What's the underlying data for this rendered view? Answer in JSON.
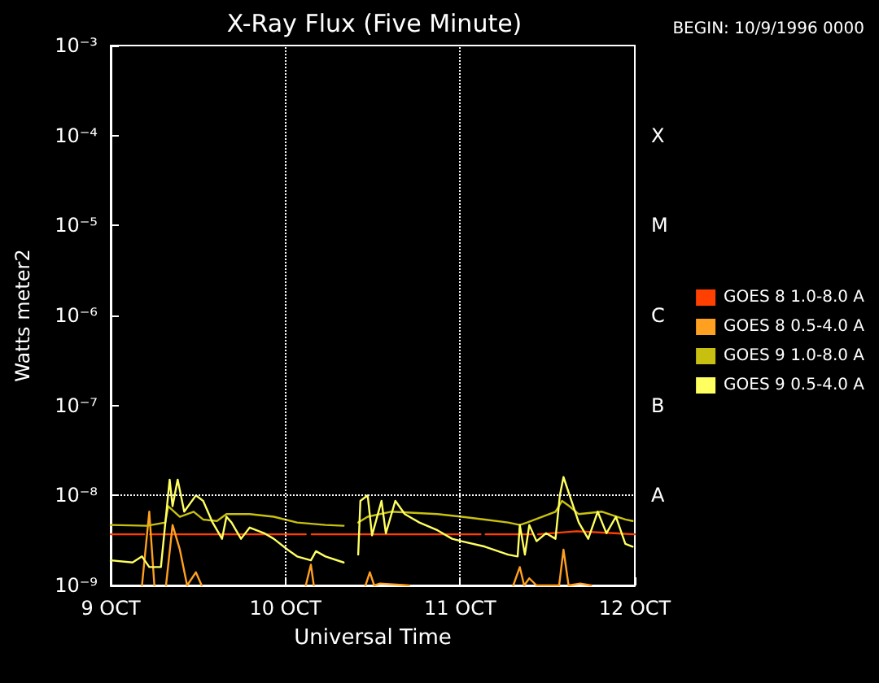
{
  "chart_data": {
    "type": "line",
    "title": "X-Ray Flux (Five Minute)",
    "subtitle": "BEGIN: 10/9/1996 0000",
    "xlabel": "Universal Time",
    "ylabel": "Watts meter2",
    "xlim": [
      "1996-10-09",
      "1996-10-12"
    ],
    "xticks": [
      {
        "value": "1996-10-09",
        "label": "9 OCT"
      },
      {
        "value": "1996-10-10",
        "label": "10 OCT"
      },
      {
        "value": "1996-10-11",
        "label": "11 OCT"
      },
      {
        "value": "1996-10-12",
        "label": "12 OCT"
      }
    ],
    "ylim": [
      1e-09,
      0.001
    ],
    "yticks": [
      {
        "value": 1e-09,
        "label": "10⁻⁹"
      },
      {
        "value": 1e-08,
        "label": "10⁻⁸"
      },
      {
        "value": 1e-07,
        "label": "10⁻⁷"
      },
      {
        "value": 1e-06,
        "label": "10⁻⁶"
      },
      {
        "value": 1e-05,
        "label": "10⁻⁵"
      },
      {
        "value": 0.0001,
        "label": "10⁻⁴"
      },
      {
        "value": 0.001,
        "label": "10⁻³"
      }
    ],
    "annotations": [
      "A",
      "B",
      "C",
      "M",
      "X"
    ],
    "log": "y",
    "grid": false,
    "legend": "right",
    "marker": "none",
    "line_style": "solid",
    "ref_lines": [
      {
        "axis": "x",
        "value": "1996-10-10",
        "line_style": "dotted",
        "color": "#ffffff"
      },
      {
        "axis": "x",
        "value": "1996-10-11",
        "line_style": "dotted",
        "color": "#ffffff"
      },
      {
        "axis": "y",
        "value": 1e-08,
        "line_style": "dotted",
        "color": "#ffffff"
      }
    ],
    "series": [
      {
        "name": "GOES 8 1.0-8.0 A",
        "color": "#ff4000",
        "x": [
          "1996-10-09T00:00",
          "1996-10-09T04:36",
          "1996-10-09T05:00",
          "1996-10-09T05:24",
          "1996-10-10T02:48",
          "1996-10-10T03:12",
          "1996-10-10T03:36",
          "1996-10-11T02:48",
          "1996-10-11T03:06",
          "1996-10-11T03:30",
          "1996-10-11T10:00",
          "1996-10-11T10:18",
          "1996-10-11T10:42",
          "1996-10-11T16:00",
          "1996-10-12T00:00"
        ],
        "values": [
          3.7e-09,
          3.7e-09,
          null,
          3.7e-09,
          3.7e-09,
          null,
          3.7e-09,
          3.7e-09,
          null,
          3.7e-09,
          3.7e-09,
          null,
          3.7e-09,
          4e-09,
          3.7e-09
        ]
      },
      {
        "name": "GOES 8 0.5-4.0 A",
        "color": "#ffa020",
        "x": [
          "1996-10-09T04:18",
          "1996-10-09T05:18",
          "1996-10-09T06:00",
          "1996-10-09T06:30",
          "1996-10-09T07:36",
          "1996-10-09T08:30",
          "1996-10-09T09:30",
          "1996-10-09T10:30",
          "1996-10-09T11:42",
          "1996-10-09T12:30",
          "1996-10-09T13:00",
          "1996-10-10T02:48",
          "1996-10-10T03:30",
          "1996-10-10T03:54",
          "1996-10-10T04:12",
          "1996-10-10T11:00",
          "1996-10-10T11:36",
          "1996-10-10T12:12",
          "1996-10-10T13:00",
          "1996-10-10T17:00",
          "1996-10-10T17:30",
          "1996-10-11T07:18",
          "1996-10-11T08:12",
          "1996-10-11T08:48",
          "1996-10-11T09:30",
          "1996-10-11T10:30",
          "1996-10-11T13:36",
          "1996-10-11T14:12",
          "1996-10-11T14:54",
          "1996-10-11T16:30",
          "1996-10-11T18:00"
        ],
        "values": [
          1e-09,
          6.6e-09,
          1e-09,
          null,
          1e-09,
          4.7e-09,
          2.5e-09,
          1e-09,
          1.4e-09,
          1e-09,
          null,
          1e-09,
          1.7e-09,
          1e-09,
          null,
          1e-09,
          1.4e-09,
          1e-09,
          1.05e-09,
          1e-09,
          null,
          1e-09,
          1.6e-09,
          1e-09,
          1.2e-09,
          1e-09,
          1e-09,
          2.5e-09,
          1e-09,
          1.05e-09,
          1e-09
        ]
      },
      {
        "name": "GOES 9 1.0-8.0 A",
        "color": "#c8c010",
        "x": [
          "1996-10-09T00:00",
          "1996-10-09T05:00",
          "1996-10-09T07:30",
          "1996-10-09T07:54",
          "1996-10-09T09:30",
          "1996-10-09T11:24",
          "1996-10-09T12:42",
          "1996-10-09T14:36",
          "1996-10-09T15:54",
          "1996-10-09T19:06",
          "1996-10-09T22:24",
          "1996-10-10T01:36",
          "1996-10-10T05:30",
          "1996-10-10T08:00",
          "1996-10-10T09:00",
          "1996-10-10T10:00",
          "1996-10-10T11:18",
          "1996-10-10T14:30",
          "1996-10-10T17:42",
          "1996-10-10T20:54",
          "1996-10-11T00:12",
          "1996-10-11T03:24",
          "1996-10-11T06:36",
          "1996-10-11T08:12",
          "1996-10-11T09:12",
          "1996-10-11T13:06",
          "1996-10-11T14:00",
          "1996-10-11T15:00",
          "1996-10-11T16:18",
          "1996-10-11T19:30",
          "1996-10-11T22:42",
          "1996-10-11T23:42"
        ],
        "values": [
          4.7e-09,
          4.6e-09,
          5e-09,
          7.6e-09,
          5.8e-09,
          6.6e-09,
          5.4e-09,
          5.2e-09,
          6.2e-09,
          6.2e-09,
          5.8e-09,
          5e-09,
          4.7e-09,
          4.6e-09,
          null,
          5e-09,
          5.8e-09,
          6.6e-09,
          6.4e-09,
          6.2e-09,
          5.8e-09,
          5.4e-09,
          5e-09,
          4.7e-09,
          5e-09,
          6.6e-09,
          8.7e-09,
          7.6e-09,
          6.2e-09,
          6.6e-09,
          5.4e-09,
          5.2e-09
        ]
      },
      {
        "name": "GOES 9 0.5-4.0 A",
        "color": "#ffff60",
        "x": [
          "1996-10-09T00:00",
          "1996-10-09T03:00",
          "1996-10-09T04:18",
          "1996-10-09T05:18",
          "1996-10-09T06:54",
          "1996-10-09T08:06",
          "1996-10-09T08:30",
          "1996-10-09T09:12",
          "1996-10-09T10:06",
          "1996-10-09T11:42",
          "1996-10-09T12:42",
          "1996-10-09T14:00",
          "1996-10-09T15:18",
          "1996-10-09T15:54",
          "1996-10-09T16:36",
          "1996-10-09T17:54",
          "1996-10-09T19:06",
          "1996-10-09T21:06",
          "1996-10-09T22:24",
          "1996-10-10T00:18",
          "1996-10-10T01:36",
          "1996-10-10T03:30",
          "1996-10-10T04:12",
          "1996-10-10T05:30",
          "1996-10-10T08:00",
          "1996-10-10T09:00",
          "1996-10-10T10:00",
          "1996-10-10T10:18",
          "1996-10-10T11:18",
          "1996-10-10T11:54",
          "1996-10-10T13:12",
          "1996-10-10T13:48",
          "1996-10-10T15:06",
          "1996-10-10T16:24",
          "1996-10-10T18:24",
          "1996-10-10T20:54",
          "1996-10-10T22:54",
          "1996-10-11T00:12",
          "1996-10-11T03:24",
          "1996-10-11T06:36",
          "1996-10-11T07:54",
          "1996-10-11T08:12",
          "1996-10-11T08:54",
          "1996-10-11T09:30",
          "1996-10-11T10:30",
          "1996-10-11T11:48",
          "1996-10-11T13:06",
          "1996-10-11T13:42",
          "1996-10-11T14:12",
          "1996-10-11T15:18",
          "1996-10-11T16:18",
          "1996-10-11T17:36",
          "1996-10-11T18:54",
          "1996-10-11T20:06",
          "1996-10-11T21:24",
          "1996-10-11T22:42",
          "1996-10-11T23:42"
        ],
        "values": [
          1.9e-09,
          1.8e-09,
          2.1e-09,
          1.6e-09,
          1.6e-09,
          1.5e-08,
          7.6e-09,
          1.5e-08,
          6.6e-09,
          1e-08,
          8.7e-09,
          5e-09,
          3.3e-09,
          5.8e-09,
          5e-09,
          3.3e-09,
          4.4e-09,
          3.8e-09,
          3.3e-09,
          2.5e-09,
          2.1e-09,
          1.9e-09,
          2.4e-09,
          2.1e-09,
          1.8e-09,
          null,
          2.2e-09,
          8.7e-09,
          1e-08,
          3.6e-09,
          8.7e-09,
          3.8e-09,
          8.7e-09,
          6.2e-09,
          5e-09,
          4.1e-09,
          3.3e-09,
          3.1e-09,
          2.7e-09,
          2.2e-09,
          2.1e-09,
          4.7e-09,
          2.2e-09,
          4.7e-09,
          3.1e-09,
          3.8e-09,
          3.3e-09,
          1e-08,
          1.6e-08,
          8.7e-09,
          5e-09,
          3.3e-09,
          6.6e-09,
          3.8e-09,
          5.8e-09,
          2.9e-09,
          2.7e-09
        ]
      }
    ]
  }
}
